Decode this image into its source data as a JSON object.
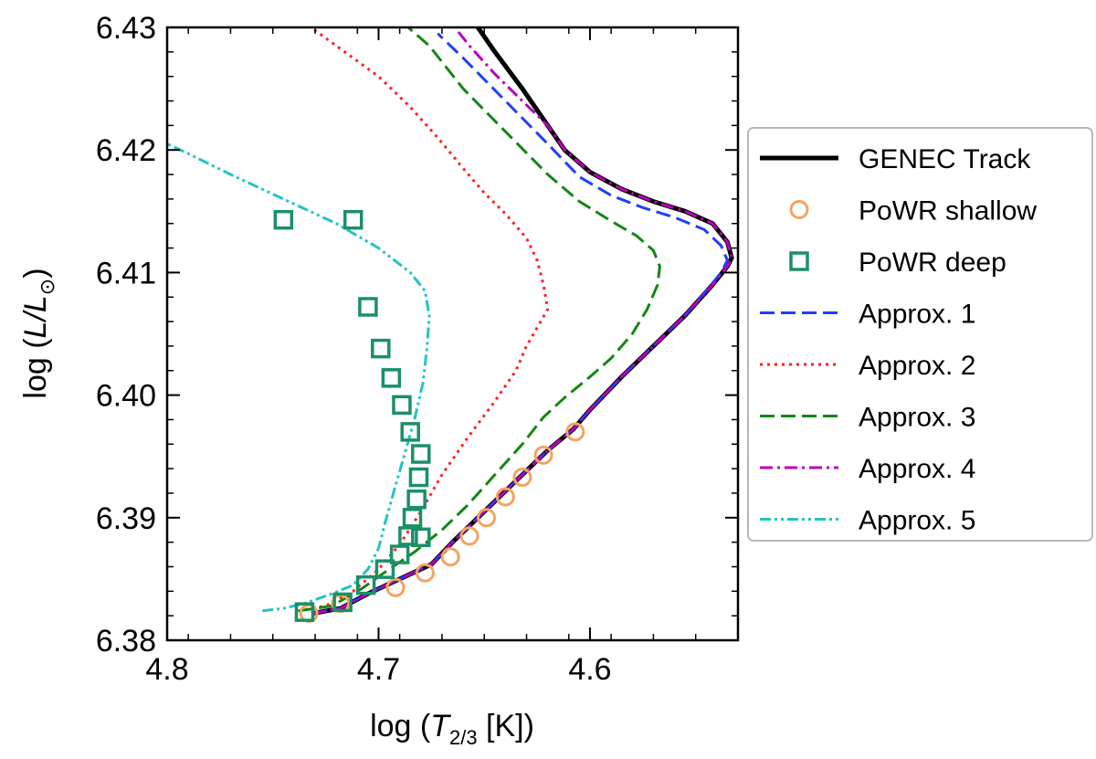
{
  "chart_data": {
    "type": "line",
    "title": "",
    "xlabel": {
      "prefix": "log (",
      "var": "T",
      "sub": "2/3",
      "suffix": " [K])"
    },
    "ylabel": {
      "prefix": "log (",
      "var": "L/L",
      "sub": "⊙",
      "suffix": ")"
    },
    "xlim": [
      4.8,
      4.53
    ],
    "ylim": [
      6.38,
      6.43
    ],
    "x_ticks": [
      {
        "value": 4.8,
        "label": "4.8"
      },
      {
        "value": 4.7,
        "label": "4.7"
      },
      {
        "value": 4.6,
        "label": "4.6"
      }
    ],
    "y_ticks": [
      {
        "value": 6.38,
        "label": "6.38"
      },
      {
        "value": 6.39,
        "label": "6.39"
      },
      {
        "value": 6.4,
        "label": "6.40"
      },
      {
        "value": 6.41,
        "label": "6.41"
      },
      {
        "value": 6.42,
        "label": "6.42"
      },
      {
        "value": 6.43,
        "label": "6.43"
      }
    ],
    "legend_position": "outside-right",
    "series": [
      {
        "name": "GENEC Track",
        "kind": "line",
        "color": "#000000",
        "style": "solid",
        "x": [
          4.731,
          4.718,
          4.705,
          4.69,
          4.675,
          4.665,
          4.65,
          4.635,
          4.62,
          4.608,
          4.6,
          4.585,
          4.57,
          4.555,
          4.542,
          4.535,
          4.533,
          4.535,
          4.542,
          4.555,
          4.57,
          4.585,
          4.6,
          4.612,
          4.62,
          4.632,
          4.645,
          4.657
        ],
        "y": [
          6.3822,
          6.3826,
          6.3838,
          6.385,
          6.3862,
          6.388,
          6.3905,
          6.393,
          6.3955,
          6.3972,
          6.3988,
          6.4015,
          6.404,
          6.4065,
          6.409,
          6.4105,
          6.4112,
          6.4125,
          6.414,
          6.415,
          6.4158,
          6.4168,
          6.4182,
          6.42,
          6.422,
          6.425,
          6.428,
          6.431
        ]
      },
      {
        "name": "PoWR shallow",
        "kind": "marker",
        "marker": "circle",
        "color": "#f4a460",
        "x": [
          4.733,
          4.718,
          4.692,
          4.678,
          4.666,
          4.657,
          4.649,
          4.64,
          4.632,
          4.622,
          4.607
        ],
        "y": [
          6.3822,
          6.383,
          6.3843,
          6.3855,
          6.3868,
          6.3885,
          6.39,
          6.3917,
          6.3933,
          6.3951,
          6.397
        ]
      },
      {
        "name": "PoWR deep",
        "kind": "marker",
        "marker": "square",
        "color": "#1a9068",
        "x": [
          4.735,
          4.717,
          4.706,
          4.697,
          4.69,
          4.686,
          4.684,
          4.682,
          4.681,
          4.68,
          4.68,
          4.685,
          4.689,
          4.694,
          4.699,
          4.705,
          4.712,
          4.745
        ],
        "y": [
          6.3823,
          6.3831,
          6.3845,
          6.3858,
          6.387,
          6.3885,
          6.39,
          6.3915,
          6.3933,
          6.3884,
          6.3952,
          6.397,
          6.3992,
          6.4014,
          6.4038,
          6.4072,
          6.4143,
          6.4143
        ]
      },
      {
        "name": "Approx. 1",
        "kind": "line",
        "color": "#1f3fff",
        "style": "dashed",
        "x": [
          4.731,
          4.718,
          4.705,
          4.69,
          4.675,
          4.665,
          4.65,
          4.635,
          4.62,
          4.608,
          4.6,
          4.585,
          4.57,
          4.555,
          4.545,
          4.538,
          4.535,
          4.538,
          4.546,
          4.56,
          4.575,
          4.59,
          4.605,
          4.62,
          4.64,
          4.66,
          4.672
        ],
        "y": [
          6.3822,
          6.3826,
          6.3838,
          6.385,
          6.3862,
          6.388,
          6.3905,
          6.393,
          6.3955,
          6.3972,
          6.3988,
          6.4015,
          6.404,
          6.4065,
          6.4085,
          6.41,
          6.411,
          6.4122,
          6.4135,
          6.4145,
          6.4153,
          6.4163,
          6.4178,
          6.4205,
          6.424,
          6.4275,
          6.4295
        ]
      },
      {
        "name": "Approx. 2",
        "kind": "line",
        "color": "#ff2020",
        "style": "dotted",
        "x": [
          4.738,
          4.725,
          4.712,
          4.7,
          4.69,
          4.68,
          4.67,
          4.658,
          4.645,
          4.635,
          4.63,
          4.625,
          4.62,
          4.622,
          4.625,
          4.63,
          4.64,
          4.65,
          4.66,
          4.672,
          4.685,
          4.7,
          4.72,
          4.74,
          4.76,
          4.774
        ],
        "y": [
          6.3824,
          6.3828,
          6.384,
          6.3858,
          6.3878,
          6.3905,
          6.3935,
          6.3965,
          6.3995,
          6.402,
          6.404,
          6.4055,
          6.407,
          6.409,
          6.411,
          6.4128,
          6.4148,
          6.4165,
          6.4185,
          6.421,
          6.4235,
          6.426,
          6.4285,
          6.431,
          6.4335,
          6.4352
        ]
      },
      {
        "name": "Approx. 3",
        "kind": "line",
        "color": "#118811",
        "style": "dashed",
        "x": [
          4.738,
          4.722,
          4.708,
          4.695,
          4.683,
          4.67,
          4.658,
          4.645,
          4.632,
          4.622,
          4.612,
          4.6,
          4.59,
          4.58,
          4.573,
          4.568,
          4.567,
          4.57,
          4.578,
          4.59,
          4.605,
          4.62,
          4.64,
          4.66,
          4.676,
          4.686
        ],
        "y": [
          6.3824,
          6.3828,
          6.3842,
          6.3858,
          6.3872,
          6.389,
          6.391,
          6.3935,
          6.396,
          6.3982,
          6.3998,
          6.4015,
          6.403,
          6.405,
          6.407,
          6.409,
          6.4105,
          6.4118,
          6.413,
          6.4142,
          6.4158,
          6.418,
          6.4215,
          6.425,
          6.4285,
          6.43
        ]
      },
      {
        "name": "Approx. 4",
        "kind": "line",
        "color": "#bb00bb",
        "style": "dashdot",
        "x": [
          4.731,
          4.718,
          4.705,
          4.69,
          4.675,
          4.665,
          4.65,
          4.635,
          4.62,
          4.608,
          4.6,
          4.585,
          4.57,
          4.555,
          4.542,
          4.535,
          4.533,
          4.535,
          4.542,
          4.555,
          4.57,
          4.585,
          4.6,
          4.612,
          4.62,
          4.632,
          4.645,
          4.657,
          4.663
        ],
        "y": [
          6.3822,
          6.3826,
          6.3838,
          6.385,
          6.3862,
          6.388,
          6.3905,
          6.393,
          6.3955,
          6.3972,
          6.3988,
          6.4015,
          6.404,
          6.4065,
          6.409,
          6.4105,
          6.4112,
          6.4125,
          6.414,
          6.415,
          6.4158,
          6.4168,
          6.4182,
          6.42,
          6.422,
          6.424,
          6.4262,
          6.4285,
          6.4298
        ]
      },
      {
        "name": "Approx. 5",
        "kind": "line",
        "color": "#22c4c4",
        "style": "dashdotdot",
        "x": [
          4.755,
          4.745,
          4.735,
          4.722,
          4.712,
          4.705,
          4.7,
          4.697,
          4.693,
          4.688,
          4.683,
          4.679,
          4.677,
          4.676,
          4.678,
          4.685,
          4.7,
          4.72,
          4.745,
          4.77,
          4.79,
          4.8
        ],
        "y": [
          6.3824,
          6.3826,
          6.383,
          6.3838,
          6.3845,
          6.3858,
          6.3875,
          6.3895,
          6.392,
          6.395,
          6.398,
          6.401,
          6.404,
          6.4065,
          6.4085,
          6.41,
          6.412,
          6.414,
          6.416,
          6.418,
          6.4197,
          6.4205
        ]
      }
    ]
  }
}
